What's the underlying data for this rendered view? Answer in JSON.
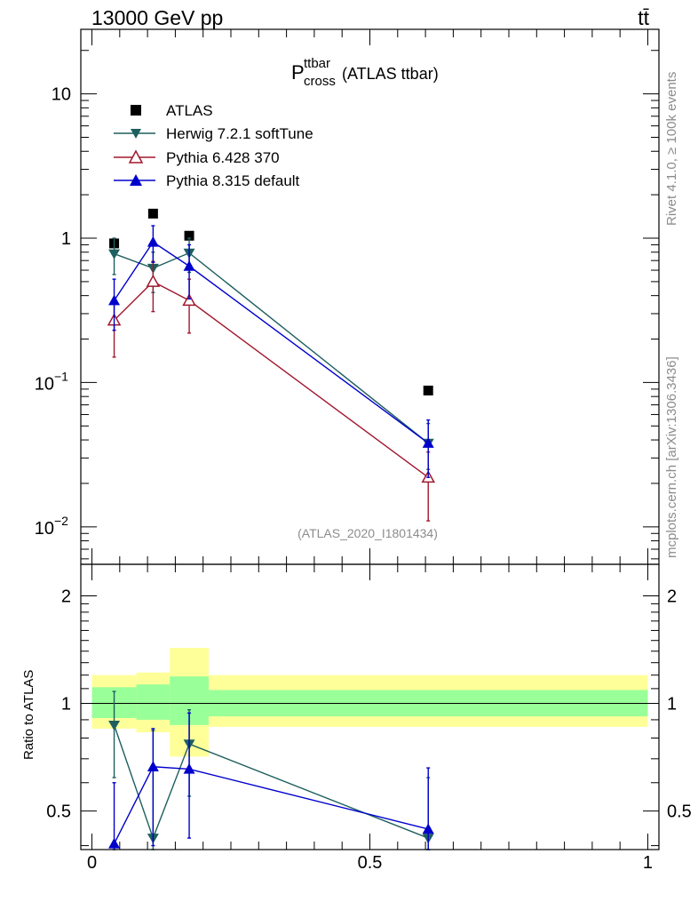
{
  "header": {
    "energy": "13000 GeV pp",
    "process": "tt̄"
  },
  "side": {
    "rivet": "Rivet 4.1.0, ≥ 100k events",
    "source": "mcplots.cern.ch [arXiv:1306.3436]"
  },
  "chart_data": [
    {
      "type": "line",
      "panel": "main",
      "title_main": "P",
      "title_sup": "ttbar",
      "title_sub": "cross",
      "title_rest": "(ATLAS ttbar)",
      "watermark": "(ATLAS_2020_I1801434)",
      "yscale": "log",
      "xlim": [
        -0.02,
        1.02
      ],
      "ylim": [
        0.0055,
        28
      ],
      "yticks": [
        {
          "v": 10,
          "label": "10"
        },
        {
          "v": 1,
          "label": "1"
        },
        {
          "v": 0.1,
          "base": "10",
          "exp": "−1"
        },
        {
          "v": 0.01,
          "base": "10",
          "exp": "−2"
        }
      ],
      "legend_position": "top-left",
      "series": [
        {
          "name": "ATLAS",
          "marker": "square",
          "color": "#000000",
          "x": [
            0.04,
            0.11,
            0.175,
            0.605
          ],
          "y": [
            0.92,
            1.48,
            1.04,
            0.088
          ]
        },
        {
          "name": "Herwig 7.2.1 softTune",
          "marker": "triangle-down",
          "color": "#1e5f5f",
          "x": [
            0.04,
            0.11,
            0.175,
            0.605
          ],
          "y": [
            0.78,
            0.62,
            0.79,
            0.038
          ],
          "yerr": [
            [
              0.56,
              1.0
            ],
            [
              0.42,
              0.8
            ],
            [
              0.58,
              1.0
            ],
            [
              0.025,
              0.052
            ]
          ]
        },
        {
          "name": "Pythia 6.428 370",
          "marker": "triangle-up-open",
          "color": "#a0182d",
          "x": [
            0.04,
            0.11,
            0.175,
            0.605
          ],
          "y": [
            0.27,
            0.5,
            0.37,
            0.022
          ],
          "yerr": [
            [
              0.15,
              0.38
            ],
            [
              0.31,
              0.69
            ],
            [
              0.22,
              0.52
            ],
            [
              0.011,
              0.033
            ]
          ]
        },
        {
          "name": "Pythia 8.315 default",
          "marker": "triangle-up",
          "color": "#0000cc",
          "x": [
            0.04,
            0.11,
            0.175,
            0.605
          ],
          "y": [
            0.37,
            0.94,
            0.64,
            0.038
          ],
          "yerr": [
            [
              0.23,
              0.52
            ],
            [
              0.68,
              1.22
            ],
            [
              0.38,
              0.9
            ],
            [
              0.022,
              0.055
            ]
          ]
        }
      ]
    },
    {
      "type": "line",
      "panel": "ratio",
      "ylabel": "Ratio to ATLAS",
      "yscale": "log",
      "xlim": [
        -0.02,
        1.02
      ],
      "ylim": [
        0.39,
        2.45
      ],
      "yticks": [
        {
          "v": 2,
          "label": "2"
        },
        {
          "v": 1,
          "label": "1"
        },
        {
          "v": 0.5,
          "label": "0.5"
        }
      ],
      "xticks": [
        {
          "v": 0,
          "label": "0"
        },
        {
          "v": 0.5,
          "label": "0.5"
        },
        {
          "v": 1,
          "label": "1"
        }
      ],
      "bands": [
        {
          "x0": 0.0,
          "x1": 0.08,
          "yellow": [
            0.85,
            1.2
          ],
          "green": [
            0.91,
            1.11
          ]
        },
        {
          "x0": 0.08,
          "x1": 0.14,
          "yellow": [
            0.83,
            1.22
          ],
          "green": [
            0.9,
            1.13
          ]
        },
        {
          "x0": 0.14,
          "x1": 0.21,
          "yellow": [
            0.71,
            1.43
          ],
          "green": [
            0.87,
            1.19
          ]
        },
        {
          "x0": 0.21,
          "x1": 1.0,
          "yellow": [
            0.86,
            1.2
          ],
          "green": [
            0.92,
            1.09
          ]
        }
      ],
      "series": [
        {
          "name": "Herwig 7.2.1 softTune",
          "marker": "triangle-down",
          "color": "#1e5f5f",
          "x": [
            0.04,
            0.11,
            0.175,
            0.605
          ],
          "y": [
            0.87,
            0.42,
            0.77,
            0.42
          ],
          "yerr": [
            [
              0.62,
              1.08
            ],
            [
              0.3,
              0.84
            ],
            [
              0.55,
              0.96
            ],
            [
              0.3,
              0.62
            ]
          ]
        },
        {
          "name": "Pythia 8.315 default",
          "marker": "triangle-up",
          "color": "#0000cc",
          "x": [
            0.04,
            0.11,
            0.175,
            0.605
          ],
          "y": [
            0.405,
            0.665,
            0.655,
            0.445
          ],
          "yerr": [
            [
              0.3,
              0.6
            ],
            [
              0.4,
              0.85
            ],
            [
              0.42,
              0.94
            ],
            [
              0.3,
              0.66
            ]
          ]
        }
      ]
    }
  ]
}
